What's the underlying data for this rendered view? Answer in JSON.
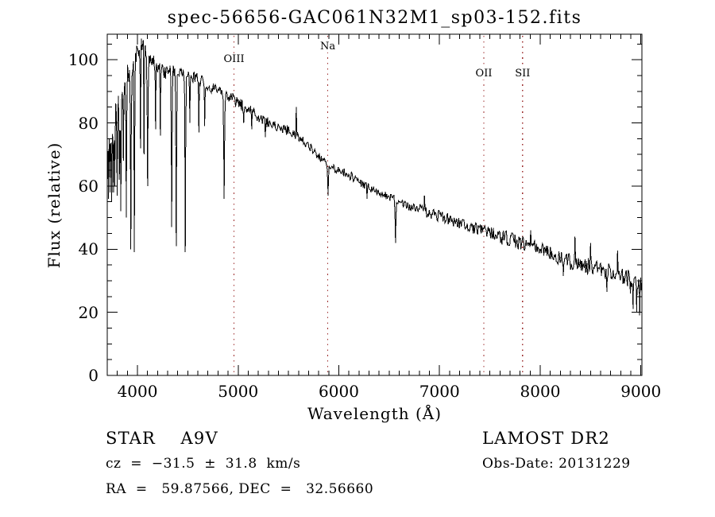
{
  "title": "spec-56656-GAC061N32M1_sp03-152.fits",
  "annotations": {
    "object_class": "STAR    A9V",
    "survey": "LAMOST DR2",
    "cz": "cz  =  −31.5  ±  31.8  km/s",
    "obs_date": "Obs-Date: 20131229",
    "ra_dec": "RA  =   59.87566, DEC  =   32.56660"
  },
  "chart_data": {
    "type": "line",
    "title": "spec-56656-GAC061N32M1_sp03-152.fits",
    "xlabel": "Wavelength (Å)",
    "ylabel": "Flux (relative)",
    "xlim": [
      3700,
      9010
    ],
    "ylim": [
      0,
      108.1
    ],
    "grid": false,
    "frame_color": "#000000",
    "background": "#ffffff",
    "spectrum_color": "#000000",
    "line_marker_color": "#9e2f2f",
    "x_major_ticks": [
      4000,
      5000,
      6000,
      7000,
      8000,
      9000
    ],
    "x_minor_tick_interval": 100,
    "y_major_ticks": [
      0,
      20,
      40,
      60,
      80,
      100
    ],
    "y_minor_tick_interval": 5,
    "spectral_lines": [
      {
        "label": "OIII",
        "wavelength": 4959,
        "label_top": 68
      },
      {
        "label": "Na",
        "wavelength": 5890,
        "label_top": 52
      },
      {
        "label": "OII",
        "wavelength": 7440,
        "label_top": 86
      },
      {
        "label": "SII",
        "wavelength": 7825,
        "label_top": 86
      }
    ],
    "series": [
      {
        "name": "flux",
        "sample_step_angstrom": 6.5,
        "noise_seed": 77,
        "continuum_anchors": [
          [
            3700,
            62
          ],
          [
            3708,
            76
          ],
          [
            3720,
            80
          ],
          [
            3735,
            82
          ],
          [
            3750,
            80
          ],
          [
            3765,
            84
          ],
          [
            3780,
            86
          ],
          [
            3800,
            87.5
          ],
          [
            3830,
            90
          ],
          [
            3860,
            92
          ],
          [
            3900,
            94.5
          ],
          [
            3950,
            98
          ],
          [
            4000,
            103
          ],
          [
            4040,
            104.5
          ],
          [
            4080,
            103
          ],
          [
            4130,
            100.5
          ],
          [
            4180,
            99
          ],
          [
            4240,
            97
          ],
          [
            4300,
            95.5
          ],
          [
            4380,
            96.5
          ],
          [
            4460,
            96
          ],
          [
            4550,
            94.5
          ],
          [
            4620,
            93.5
          ],
          [
            4700,
            92
          ],
          [
            4780,
            90.5
          ],
          [
            4861,
            88.5
          ],
          [
            4940,
            87.5
          ],
          [
            5000,
            86.5
          ],
          [
            5080,
            84.5
          ],
          [
            5160,
            83
          ],
          [
            5240,
            81
          ],
          [
            5320,
            79.5
          ],
          [
            5400,
            78.5
          ],
          [
            5480,
            78
          ],
          [
            5560,
            76.5
          ],
          [
            5640,
            74.5
          ],
          [
            5720,
            72
          ],
          [
            5800,
            69.5
          ],
          [
            5900,
            66.5
          ],
          [
            6000,
            65
          ],
          [
            6100,
            63.5
          ],
          [
            6200,
            61.5
          ],
          [
            6300,
            59.5
          ],
          [
            6400,
            58
          ],
          [
            6500,
            56.5
          ],
          [
            6600,
            55
          ],
          [
            6700,
            53.5
          ],
          [
            6800,
            52.5
          ],
          [
            6900,
            51.5
          ],
          [
            7000,
            50.5
          ],
          [
            7100,
            49.3
          ],
          [
            7200,
            48.2
          ],
          [
            7300,
            47
          ],
          [
            7400,
            46.2
          ],
          [
            7500,
            45.2
          ],
          [
            7600,
            44.2
          ],
          [
            7700,
            43.2
          ],
          [
            7800,
            42
          ],
          [
            7900,
            41
          ],
          [
            8000,
            40.2
          ],
          [
            8100,
            38.8
          ],
          [
            8200,
            37.3
          ],
          [
            8300,
            36.2
          ],
          [
            8400,
            35.3
          ],
          [
            8500,
            34.5
          ],
          [
            8600,
            33.5
          ],
          [
            8700,
            32.3
          ],
          [
            8800,
            31.3
          ],
          [
            8900,
            30.3
          ],
          [
            9010,
            28.8
          ]
        ],
        "absorption_lines": [
          [
            3712,
            56,
            9
          ],
          [
            3728,
            58,
            8
          ],
          [
            3745,
            55,
            9
          ],
          [
            3762,
            58,
            8
          ],
          [
            3775,
            60,
            8
          ],
          [
            3798,
            57,
            9
          ],
          [
            3820,
            62,
            8
          ],
          [
            3835,
            52,
            9
          ],
          [
            3860,
            68,
            7
          ],
          [
            3889,
            50,
            9
          ],
          [
            3934,
            40,
            9
          ],
          [
            3969,
            39,
            9
          ],
          [
            4030,
            72,
            7
          ],
          [
            4065,
            70,
            7
          ],
          [
            4101,
            60,
            11
          ],
          [
            4180,
            78,
            7
          ],
          [
            4227,
            76,
            7
          ],
          [
            4340,
            47,
            10
          ],
          [
            4385,
            41,
            10
          ],
          [
            4475,
            39,
            9
          ],
          [
            4520,
            80,
            7
          ],
          [
            4610,
            77,
            7
          ],
          [
            4668,
            79,
            7
          ],
          [
            4861,
            56,
            11
          ],
          [
            5055,
            80,
            7
          ],
          [
            5135,
            78,
            6
          ],
          [
            5270,
            75.5,
            7
          ],
          [
            5568,
            75,
            5
          ],
          [
            5893,
            57,
            11
          ],
          [
            6280,
            56,
            6
          ],
          [
            6563,
            42,
            11
          ],
          [
            7620,
            41.5,
            8
          ],
          [
            8230,
            31.5,
            7
          ],
          [
            8662,
            26.5,
            7
          ],
          [
            8895,
            26,
            6
          ],
          [
            8922,
            21,
            6
          ],
          [
            8958,
            20,
            6
          ],
          [
            8988,
            19,
            6
          ]
        ],
        "emission_spikes": [
          [
            5577,
            85,
            5
          ],
          [
            6850,
            57,
            5
          ],
          [
            7905,
            46,
            5
          ],
          [
            8345,
            44,
            5
          ],
          [
            8500,
            42,
            5
          ],
          [
            8768,
            39.5,
            5
          ]
        ],
        "noise_regions": [
          [
            3700,
            3770,
            14
          ],
          [
            3770,
            3830,
            8
          ],
          [
            3830,
            3965,
            4
          ],
          [
            3965,
            4400,
            2.4
          ],
          [
            4400,
            5500,
            1.9
          ],
          [
            5500,
            6750,
            1.4
          ],
          [
            6750,
            7600,
            1.9
          ],
          [
            7600,
            8300,
            2.4
          ],
          [
            8300,
            9010,
            2.9
          ]
        ]
      }
    ]
  }
}
